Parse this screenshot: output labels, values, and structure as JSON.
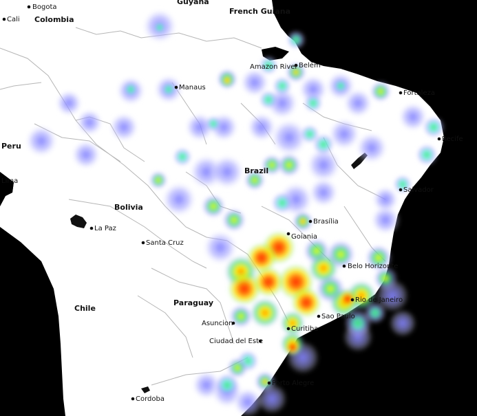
{
  "map": {
    "countries": [
      "Guyana",
      "French Guiana",
      "Colombia",
      "Peru",
      "Bolivia",
      "Brazil",
      "Chile",
      "Paraguay"
    ],
    "cities": {
      "bogota": "Bogota",
      "cali": "Cali",
      "manaus": "Manaus",
      "belem": "Belém",
      "amazon_river": "Amazon River",
      "fortaleza": "Fortaleza",
      "recife": "Recife",
      "salvador": "Salvador",
      "lima": "Lima",
      "la_paz": "La Paz",
      "santa_cruz": "Santa Cruz",
      "brasilia": "Brasília",
      "goiania": "Goiania",
      "belo_horizonte": "Belo Horizonte",
      "rio": "Rio de Janeiro",
      "sao_paulo": "Sao Paulo",
      "curitiba": "Curitiba",
      "asuncion": "Asuncion",
      "ciudad_del_este": "Ciudad del Este",
      "porto_alegre": "Porto Alegre",
      "cordoba": "Cordoba"
    },
    "colors": {
      "ocean": "#000000",
      "land": "#ffffff",
      "border": "#b5b5b5",
      "heat_low": "#8c8cff",
      "heat_mid": "#ffff00",
      "heat_high": "#ff2800"
    }
  }
}
